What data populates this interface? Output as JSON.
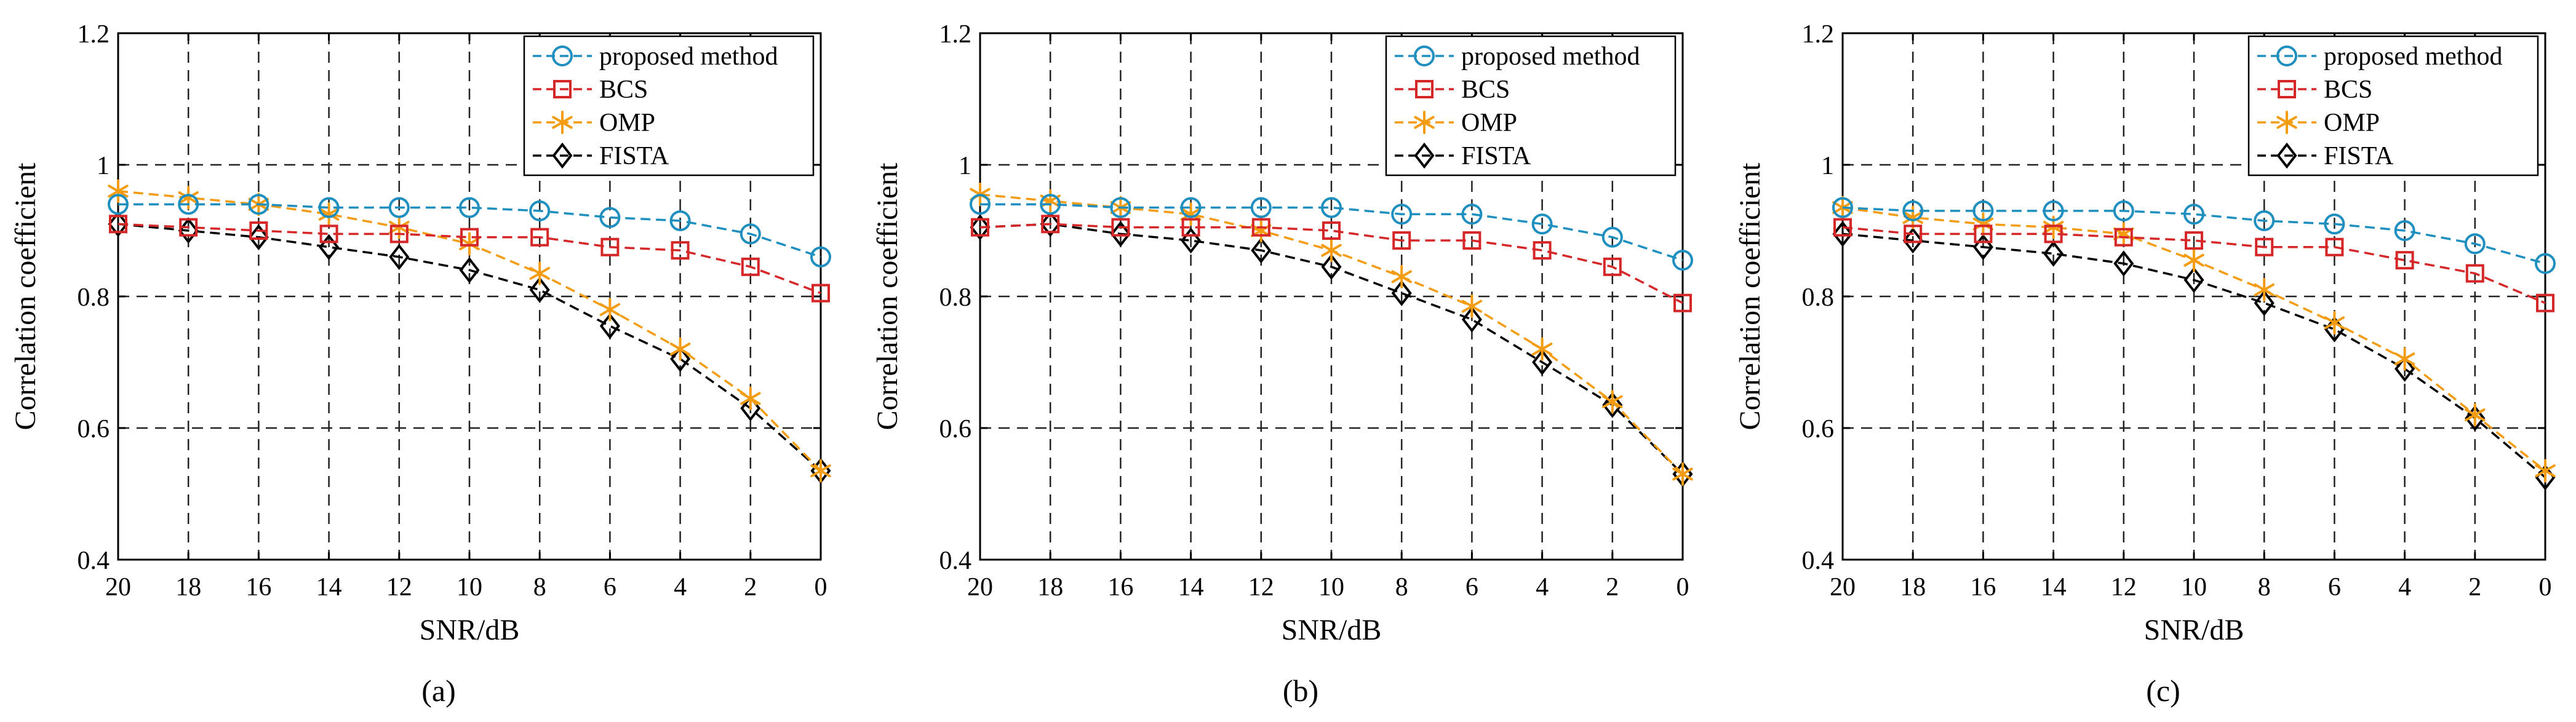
{
  "colors": {
    "proposed": "#1f8fbf",
    "bcs": "#d62728",
    "omp": "#f39c12",
    "fista": "#000000",
    "grid": "#222222"
  },
  "chart_data": [
    {
      "type": "line",
      "panel_label": "(a)",
      "xlabel": "SNR/dB",
      "ylabel": "Correlation coefficient",
      "xlim": [
        20,
        0
      ],
      "ylim": [
        0.4,
        1.2
      ],
      "x_ticks": [
        20,
        18,
        16,
        14,
        12,
        10,
        8,
        6,
        4,
        2,
        0
      ],
      "y_ticks": [
        0.4,
        0.6,
        0.8,
        1,
        1.2
      ],
      "y_tick_labels": [
        "0.4",
        "0.6",
        "0.8",
        "1",
        "1.2"
      ],
      "grid": true,
      "legend_position": "top-right",
      "x": [
        20,
        18,
        16,
        14,
        12,
        10,
        8,
        6,
        4,
        2,
        0
      ],
      "series": [
        {
          "name": "proposed method",
          "key": "proposed",
          "marker": "circle",
          "values": [
            0.94,
            0.94,
            0.94,
            0.935,
            0.935,
            0.935,
            0.93,
            0.92,
            0.915,
            0.895,
            0.86
          ]
        },
        {
          "name": "BCS",
          "key": "bcs",
          "marker": "square",
          "values": [
            0.91,
            0.905,
            0.9,
            0.895,
            0.895,
            0.89,
            0.89,
            0.875,
            0.87,
            0.845,
            0.805
          ]
        },
        {
          "name": "OMP",
          "key": "omp",
          "marker": "star",
          "values": [
            0.96,
            0.95,
            0.94,
            0.925,
            0.905,
            0.88,
            0.835,
            0.78,
            0.72,
            0.645,
            0.535
          ]
        },
        {
          "name": "FISTA",
          "key": "fista",
          "marker": "diamond",
          "values": [
            0.91,
            0.9,
            0.89,
            0.875,
            0.86,
            0.84,
            0.81,
            0.755,
            0.705,
            0.63,
            0.535
          ]
        }
      ]
    },
    {
      "type": "line",
      "panel_label": "(b)",
      "xlabel": "SNR/dB",
      "ylabel": "Correlation coefficient",
      "xlim": [
        20,
        0
      ],
      "ylim": [
        0.4,
        1.2
      ],
      "x_ticks": [
        20,
        18,
        16,
        14,
        12,
        10,
        8,
        6,
        4,
        2,
        0
      ],
      "y_ticks": [
        0.4,
        0.6,
        0.8,
        1,
        1.2
      ],
      "y_tick_labels": [
        "0.4",
        "0.6",
        "0.8",
        "1",
        "1.2"
      ],
      "grid": true,
      "legend_position": "top-right",
      "x": [
        20,
        18,
        16,
        14,
        12,
        10,
        8,
        6,
        4,
        2,
        0
      ],
      "series": [
        {
          "name": "proposed method",
          "key": "proposed",
          "marker": "circle",
          "values": [
            0.94,
            0.94,
            0.935,
            0.935,
            0.935,
            0.935,
            0.925,
            0.925,
            0.91,
            0.89,
            0.855
          ]
        },
        {
          "name": "BCS",
          "key": "bcs",
          "marker": "square",
          "values": [
            0.905,
            0.91,
            0.905,
            0.905,
            0.905,
            0.9,
            0.885,
            0.885,
            0.87,
            0.845,
            0.79
          ]
        },
        {
          "name": "OMP",
          "key": "omp",
          "marker": "star",
          "values": [
            0.955,
            0.945,
            0.935,
            0.925,
            0.9,
            0.87,
            0.83,
            0.785,
            0.72,
            0.64,
            0.53
          ]
        },
        {
          "name": "FISTA",
          "key": "fista",
          "marker": "diamond",
          "values": [
            0.905,
            0.91,
            0.895,
            0.885,
            0.87,
            0.845,
            0.805,
            0.765,
            0.7,
            0.635,
            0.53
          ]
        }
      ]
    },
    {
      "type": "line",
      "panel_label": "(c)",
      "xlabel": "SNR/dB",
      "ylabel": "Correlation coefficient",
      "xlim": [
        20,
        0
      ],
      "ylim": [
        0.4,
        1.2
      ],
      "x_ticks": [
        20,
        18,
        16,
        14,
        12,
        10,
        8,
        6,
        4,
        2,
        0
      ],
      "y_ticks": [
        0.4,
        0.6,
        0.8,
        1,
        1.2
      ],
      "y_tick_labels": [
        "0.4",
        "0.6",
        "0.8",
        "1",
        "1.2"
      ],
      "grid": true,
      "legend_position": "top-right",
      "x": [
        20,
        18,
        16,
        14,
        12,
        10,
        8,
        6,
        4,
        2,
        0
      ],
      "series": [
        {
          "name": "proposed method",
          "key": "proposed",
          "marker": "circle",
          "values": [
            0.935,
            0.93,
            0.93,
            0.93,
            0.93,
            0.925,
            0.915,
            0.91,
            0.9,
            0.88,
            0.85
          ]
        },
        {
          "name": "BCS",
          "key": "bcs",
          "marker": "square",
          "values": [
            0.905,
            0.895,
            0.895,
            0.895,
            0.89,
            0.885,
            0.875,
            0.875,
            0.855,
            0.835,
            0.79
          ]
        },
        {
          "name": "OMP",
          "key": "omp",
          "marker": "star",
          "values": [
            0.935,
            0.92,
            0.91,
            0.905,
            0.895,
            0.855,
            0.81,
            0.76,
            0.705,
            0.62,
            0.535
          ]
        },
        {
          "name": "FISTA",
          "key": "fista",
          "marker": "diamond",
          "values": [
            0.895,
            0.885,
            0.875,
            0.865,
            0.85,
            0.825,
            0.79,
            0.75,
            0.69,
            0.615,
            0.525
          ]
        }
      ]
    }
  ]
}
